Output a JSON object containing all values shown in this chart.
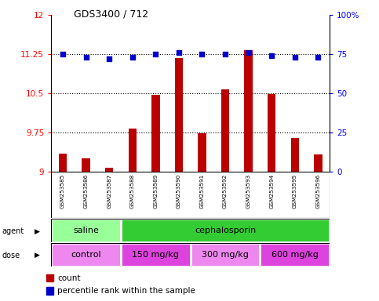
{
  "title": "GDS3400 / 712",
  "samples": [
    "GSM253585",
    "GSM253586",
    "GSM253587",
    "GSM253588",
    "GSM253589",
    "GSM253590",
    "GSM253591",
    "GSM253592",
    "GSM253593",
    "GSM253594",
    "GSM253595",
    "GSM253596"
  ],
  "bar_values": [
    9.35,
    9.25,
    9.08,
    9.82,
    10.47,
    11.18,
    9.74,
    10.58,
    11.32,
    10.48,
    9.65,
    9.33
  ],
  "dot_values": [
    75,
    73,
    72,
    73,
    75,
    76,
    75,
    75,
    76,
    74,
    73,
    73
  ],
  "bar_color": "#bb0000",
  "dot_color": "#0000cc",
  "ylim_left": [
    9,
    12
  ],
  "ylim_right": [
    0,
    100
  ],
  "yticks_left": [
    9,
    9.75,
    10.5,
    11.25,
    12
  ],
  "yticks_right": [
    0,
    25,
    50,
    75,
    100
  ],
  "ytick_labels_left": [
    "9",
    "9.75",
    "10.5",
    "11.25",
    "12"
  ],
  "ytick_labels_right": [
    "0",
    "25",
    "50",
    "75",
    "100%"
  ],
  "hlines": [
    9.75,
    10.5,
    11.25
  ],
  "agent_groups": [
    {
      "label": "saline",
      "start": 0,
      "end": 3,
      "color": "#99ff99"
    },
    {
      "label": "cephalosporin",
      "start": 3,
      "end": 12,
      "color": "#33cc33"
    }
  ],
  "dose_groups": [
    {
      "label": "control",
      "start": 0,
      "end": 3,
      "color": "#ee88ee"
    },
    {
      "label": "150 mg/kg",
      "start": 3,
      "end": 6,
      "color": "#dd44dd"
    },
    {
      "label": "300 mg/kg",
      "start": 6,
      "end": 9,
      "color": "#ee88ee"
    },
    {
      "label": "600 mg/kg",
      "start": 9,
      "end": 12,
      "color": "#dd44dd"
    }
  ],
  "bg_color": "#c8c8c8",
  "plot_bg": "#ffffff",
  "bar_width": 0.35
}
